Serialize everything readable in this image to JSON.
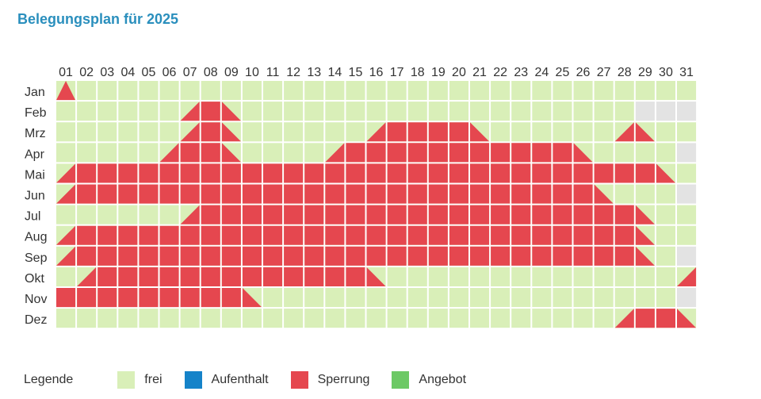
{
  "title": "Belegungsplan für 2025",
  "chart_data": {
    "type": "heatmap",
    "title": "Belegungsplan für 2025",
    "days": [
      "01",
      "02",
      "03",
      "04",
      "05",
      "06",
      "07",
      "08",
      "09",
      "10",
      "11",
      "12",
      "13",
      "14",
      "15",
      "16",
      "17",
      "18",
      "19",
      "20",
      "21",
      "22",
      "23",
      "24",
      "25",
      "26",
      "27",
      "28",
      "29",
      "30",
      "31"
    ],
    "months": [
      "Jan",
      "Feb",
      "Mrz",
      "Apr",
      "Mai",
      "Jun",
      "Jul",
      "Aug",
      "Sep",
      "Okt",
      "Nov",
      "Dez"
    ],
    "month_lengths": [
      31,
      28,
      31,
      30,
      31,
      30,
      31,
      31,
      30,
      31,
      30,
      31
    ],
    "status_colors": {
      "frei": "#d9efb8",
      "Aufenthalt": "#1583c9",
      "Sperrung": "#e5474f",
      "Angebot": "#6cc965",
      "none": "#e3e3e3"
    },
    "blocked_ranges": [
      [
        "01-01",
        "01-01"
      ],
      [
        "02-07",
        "02-09"
      ],
      [
        "03-07",
        "03-09"
      ],
      [
        "03-16",
        "03-21"
      ],
      [
        "03-28",
        "03-29"
      ],
      [
        "04-06",
        "04-09"
      ],
      [
        "04-14",
        "04-26"
      ],
      [
        "05-01",
        "05-30"
      ],
      [
        "06-01",
        "06-27"
      ],
      [
        "07-07",
        "07-29"
      ],
      [
        "08-01",
        "08-29"
      ],
      [
        "09-01",
        "09-29"
      ],
      [
        "10-02",
        "10-16"
      ],
      [
        "10-31",
        "10-31"
      ],
      [
        "11-01",
        "11-10"
      ],
      [
        "12-28",
        "12-31"
      ]
    ]
  },
  "legend": {
    "label": "Legende",
    "items": [
      {
        "name": "frei",
        "color": "#d9efb8"
      },
      {
        "name": "Aufenthalt",
        "color": "#1583c9"
      },
      {
        "name": "Sperrung",
        "color": "#e5474f"
      },
      {
        "name": "Angebot",
        "color": "#6cc965"
      }
    ]
  }
}
